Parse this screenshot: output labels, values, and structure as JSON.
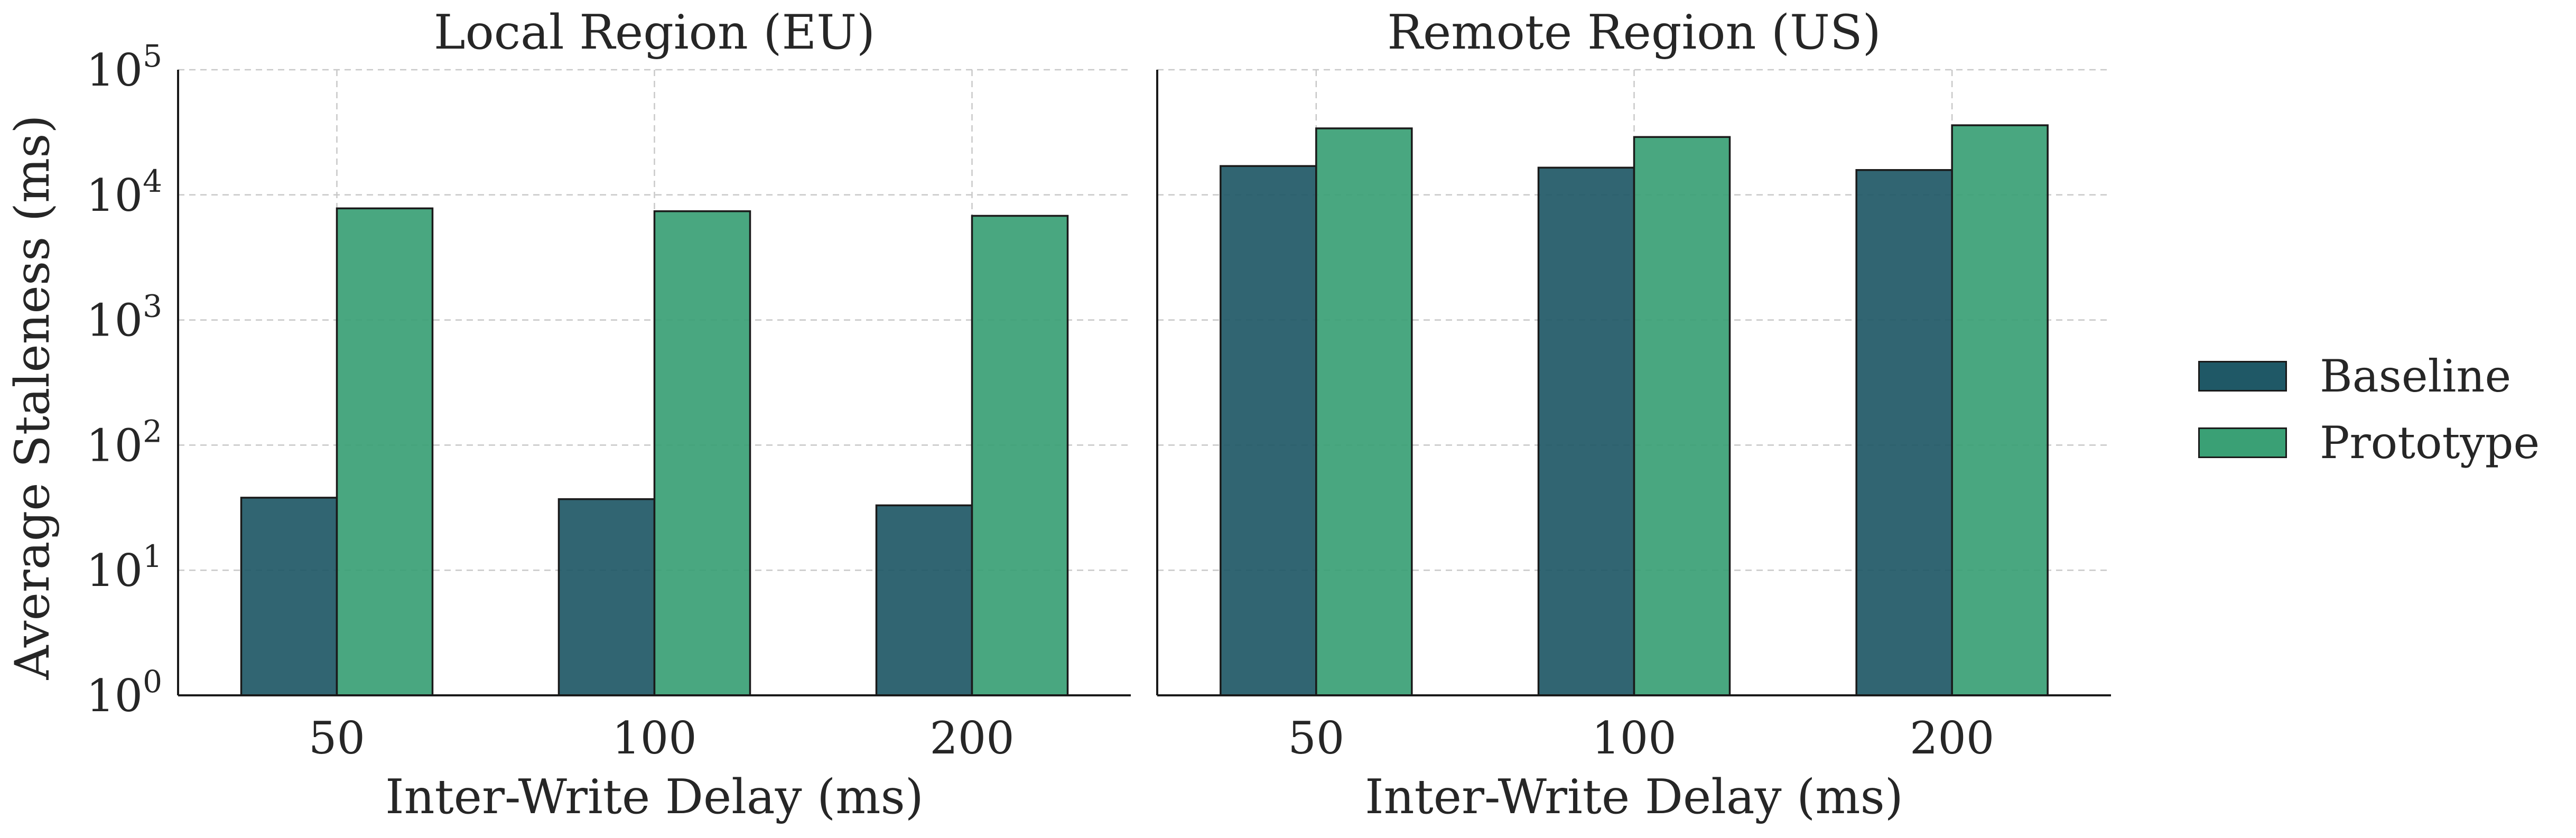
{
  "figure": {
    "ylabel": "Average Staleness (ms)",
    "legend": {
      "placement": "right",
      "items": [
        {
          "label": "Baseline",
          "color": "#1f5866"
        },
        {
          "label": "Prototype",
          "color": "#3aa075"
        }
      ]
    }
  },
  "chart_data": [
    {
      "type": "bar",
      "title": "Local Region (EU)",
      "xlabel": "Inter-Write Delay (ms)",
      "ylabel": "Average Staleness (ms)",
      "yscale": "log",
      "ylim": [
        1,
        100000
      ],
      "yticks": [
        1,
        10,
        100,
        1000,
        10000,
        100000
      ],
      "grid": true,
      "categories": [
        "50",
        "100",
        "200"
      ],
      "series": [
        {
          "name": "Baseline",
          "color": "#1f5866",
          "values": [
            38,
            37,
            33
          ]
        },
        {
          "name": "Prototype",
          "color": "#3aa075",
          "values": [
            7800,
            7400,
            6800
          ]
        }
      ]
    },
    {
      "type": "bar",
      "title": "Remote Region (US)",
      "xlabel": "Inter-Write Delay (ms)",
      "yscale": "log",
      "ylim": [
        1,
        100000
      ],
      "yticks": [
        1,
        10,
        100,
        1000,
        10000,
        100000
      ],
      "grid": true,
      "categories": [
        "50",
        "100",
        "200"
      ],
      "series": [
        {
          "name": "Baseline",
          "color": "#1f5866",
          "values": [
            17000,
            16500,
            15800
          ]
        },
        {
          "name": "Prototype",
          "color": "#3aa075",
          "values": [
            34000,
            29000,
            36000
          ]
        }
      ]
    }
  ]
}
